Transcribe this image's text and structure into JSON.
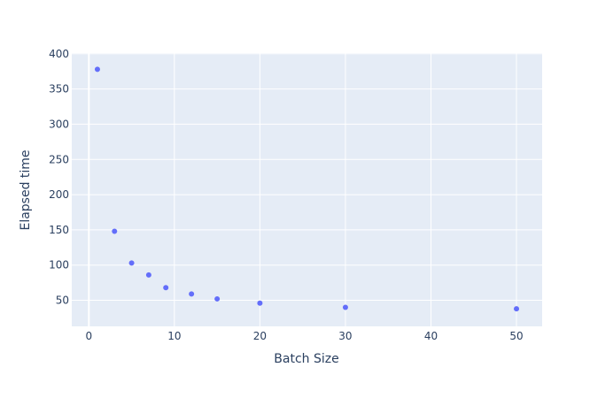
{
  "chart_data": {
    "type": "scatter",
    "title": "",
    "xlabel": "Batch Size",
    "ylabel": "Elapsed time",
    "xlim": [
      -2,
      53
    ],
    "ylim": [
      13,
      401
    ],
    "x_ticks": [
      0,
      10,
      20,
      30,
      40,
      50
    ],
    "y_ticks": [
      50,
      100,
      150,
      200,
      250,
      300,
      350,
      400
    ],
    "grid": true,
    "legend": "none",
    "colors": {
      "marker": "#636efa",
      "plot_bg": "#e5ecf6",
      "grid": "#ffffff",
      "text": "#2a3f5f"
    },
    "series": [
      {
        "x": [
          1,
          3,
          5,
          7,
          9,
          12,
          15,
          20,
          30,
          50
        ],
        "y": [
          378,
          148,
          103,
          86,
          68,
          59,
          52,
          46,
          40,
          38
        ]
      }
    ]
  }
}
